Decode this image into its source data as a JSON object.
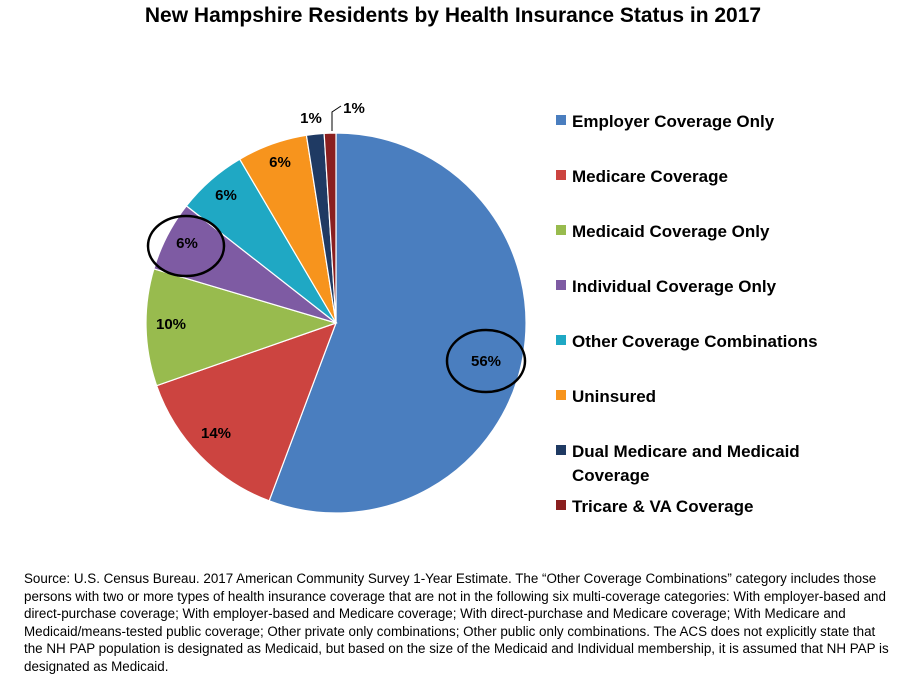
{
  "chart_data": {
    "type": "pie",
    "title": "New Hampshire Residents by Health Insurance Status in 2017",
    "slices": [
      {
        "name": "Employer Coverage Only",
        "label": "56%",
        "value": 56,
        "color": "#4a7ebf"
      },
      {
        "name": "Medicare Coverage",
        "label": "14%",
        "value": 14,
        "color": "#cc4440"
      },
      {
        "name": "Medicaid Coverage Only",
        "label": "10%",
        "value": 10,
        "color": "#98bb4e"
      },
      {
        "name": "Individual Coverage Only",
        "label": "6%",
        "value": 6,
        "color": "#7e5ba3"
      },
      {
        "name": "Other Coverage Combinations",
        "label": "6%",
        "value": 6,
        "color": "#1fa8c4"
      },
      {
        "name": "Uninsured",
        "label": "6%",
        "value": 6,
        "color": "#f7941d"
      },
      {
        "name": "Dual Medicare and Medicaid Coverage",
        "label": "1%",
        "value": 1.5,
        "color": "#1f3a63"
      },
      {
        "name": "Tricare & VA Coverage",
        "label": "1%",
        "value": 1,
        "color": "#8a1f1f"
      }
    ],
    "highlighted": [
      "56%",
      "6%"
    ],
    "legend_position": "right"
  },
  "source_note": "Source:  U.S. Census Bureau. 2017 American Community Survey 1-Year Estimate.  The “Other Coverage Combinations” category includes those persons with two or more types of health insurance coverage that are not in the following six multi-coverage categories: With employer-based and direct-purchase coverage; With employer-based and Medicare coverage; With direct-purchase and Medicare coverage; With Medicare and Medicaid/means-tested public coverage; Other private only combinations; Other public only combinations. The ACS does not explicitly state that the NH PAP population is designated as Medicaid, but based on the size of the Medicaid and Individual membership, it is assumed that NH PAP is designated as Medicaid."
}
